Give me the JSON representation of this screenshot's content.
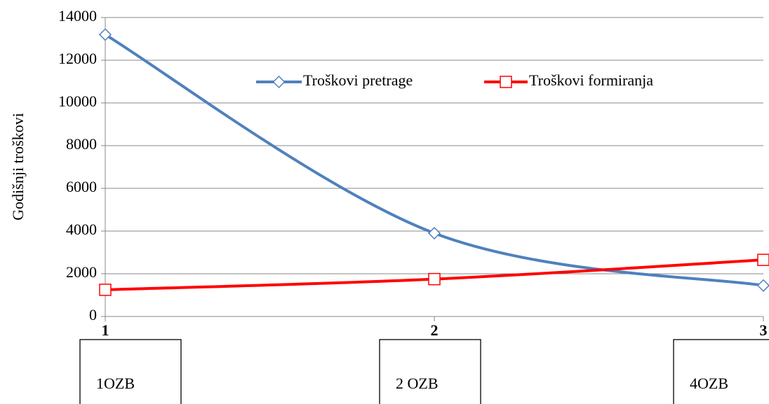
{
  "chart_data": {
    "type": "line",
    "y_label": "Godišnji troškovi",
    "x": [
      1,
      2,
      3
    ],
    "xlim": [
      1,
      3
    ],
    "xticks": [
      1,
      2,
      3
    ],
    "ylim": [
      0,
      14000
    ],
    "yticks": [
      0,
      2000,
      4000,
      6000,
      8000,
      10000,
      12000,
      14000
    ],
    "grid": true,
    "series": [
      {
        "name": "Troškovi pretrage",
        "color": "#4f81bd",
        "marker": "diamond",
        "values": [
          13200,
          3900,
          1450
        ]
      },
      {
        "name": "Troškovi formiranja",
        "color": "#ff0000",
        "marker": "square",
        "values": [
          1250,
          1750,
          2650
        ]
      }
    ],
    "annotations": [
      "1OZB",
      "2 OZB",
      "4OZB"
    ]
  }
}
